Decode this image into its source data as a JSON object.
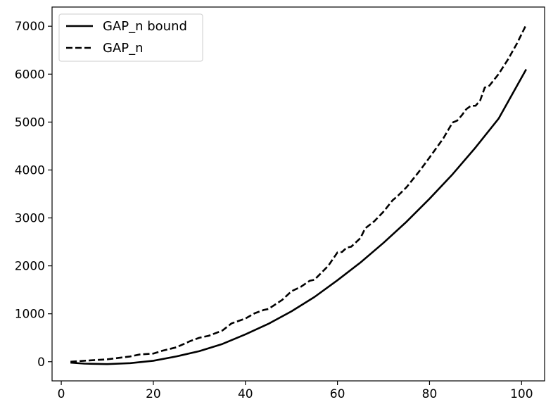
{
  "chart_data": {
    "type": "line",
    "title": "",
    "xlabel": "",
    "ylabel": "",
    "xlim": [
      -2,
      105
    ],
    "ylim": [
      -400,
      7400
    ],
    "xticks": [
      0,
      20,
      40,
      60,
      80,
      100
    ],
    "yticks": [
      0,
      1000,
      2000,
      3000,
      4000,
      5000,
      6000,
      7000
    ],
    "grid": false,
    "legend": "top-left",
    "series": [
      {
        "name": "GAP_n bound",
        "style": "solid",
        "color": "#000000",
        "x": [
          2,
          5,
          10,
          15,
          20,
          25,
          30,
          35,
          40,
          45,
          50,
          55,
          60,
          65,
          70,
          75,
          80,
          85,
          90,
          95,
          101
        ],
        "y": [
          -20,
          -40,
          -50,
          -30,
          20,
          110,
          220,
          370,
          570,
          790,
          1050,
          1350,
          1700,
          2070,
          2480,
          2920,
          3400,
          3910,
          4470,
          5070,
          6100
        ]
      },
      {
        "name": "GAP_n",
        "style": "dashed",
        "color": "#000000",
        "x": [
          2,
          5,
          10,
          15,
          17,
          20,
          22,
          25,
          28,
          30,
          32,
          35,
          37,
          40,
          42,
          44,
          45,
          48,
          50,
          52,
          54,
          55,
          58,
          60,
          61,
          62,
          63,
          65,
          66,
          68,
          70,
          72,
          73,
          75,
          78,
          80,
          83,
          85,
          86,
          87,
          88,
          89,
          90,
          91,
          92,
          93,
          95,
          97,
          99,
          101
        ],
        "y": [
          0,
          20,
          50,
          110,
          150,
          170,
          230,
          300,
          430,
          500,
          540,
          650,
          800,
          900,
          1010,
          1080,
          1100,
          1290,
          1470,
          1560,
          1690,
          1710,
          2000,
          2280,
          2290,
          2380,
          2400,
          2580,
          2780,
          2930,
          3130,
          3370,
          3450,
          3640,
          4000,
          4260,
          4660,
          4990,
          5030,
          5140,
          5270,
          5340,
          5340,
          5450,
          5720,
          5760,
          6000,
          6300,
          6640,
          7030
        ]
      }
    ]
  }
}
